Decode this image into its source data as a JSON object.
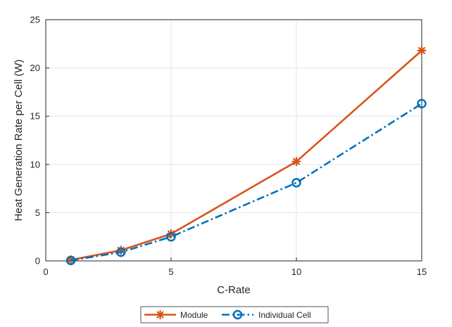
{
  "chart_data": {
    "type": "line",
    "xlabel": "C-Rate",
    "ylabel": "Heat Generation Rate per Cell (W)",
    "xlim": [
      0,
      15
    ],
    "ylim": [
      0,
      25
    ],
    "xticks": [
      "0",
      "5",
      "10",
      "15"
    ],
    "yticks": [
      "0",
      "5",
      "10",
      "15",
      "20",
      "25"
    ],
    "grid": true,
    "legend_position": "bottom-center",
    "series": [
      {
        "name": "Module",
        "color": "#D95319",
        "line_style": "solid",
        "marker": "asterisk",
        "x": [
          1,
          3,
          5,
          10,
          15
        ],
        "y": [
          0.1,
          1.1,
          2.8,
          10.3,
          21.8
        ]
      },
      {
        "name": "Individual Cell",
        "color": "#0072BD",
        "line_style": "dash-dot",
        "marker": "circle",
        "x": [
          1,
          3,
          5,
          10,
          15
        ],
        "y": [
          0.05,
          0.9,
          2.5,
          8.1,
          16.3
        ]
      }
    ]
  }
}
